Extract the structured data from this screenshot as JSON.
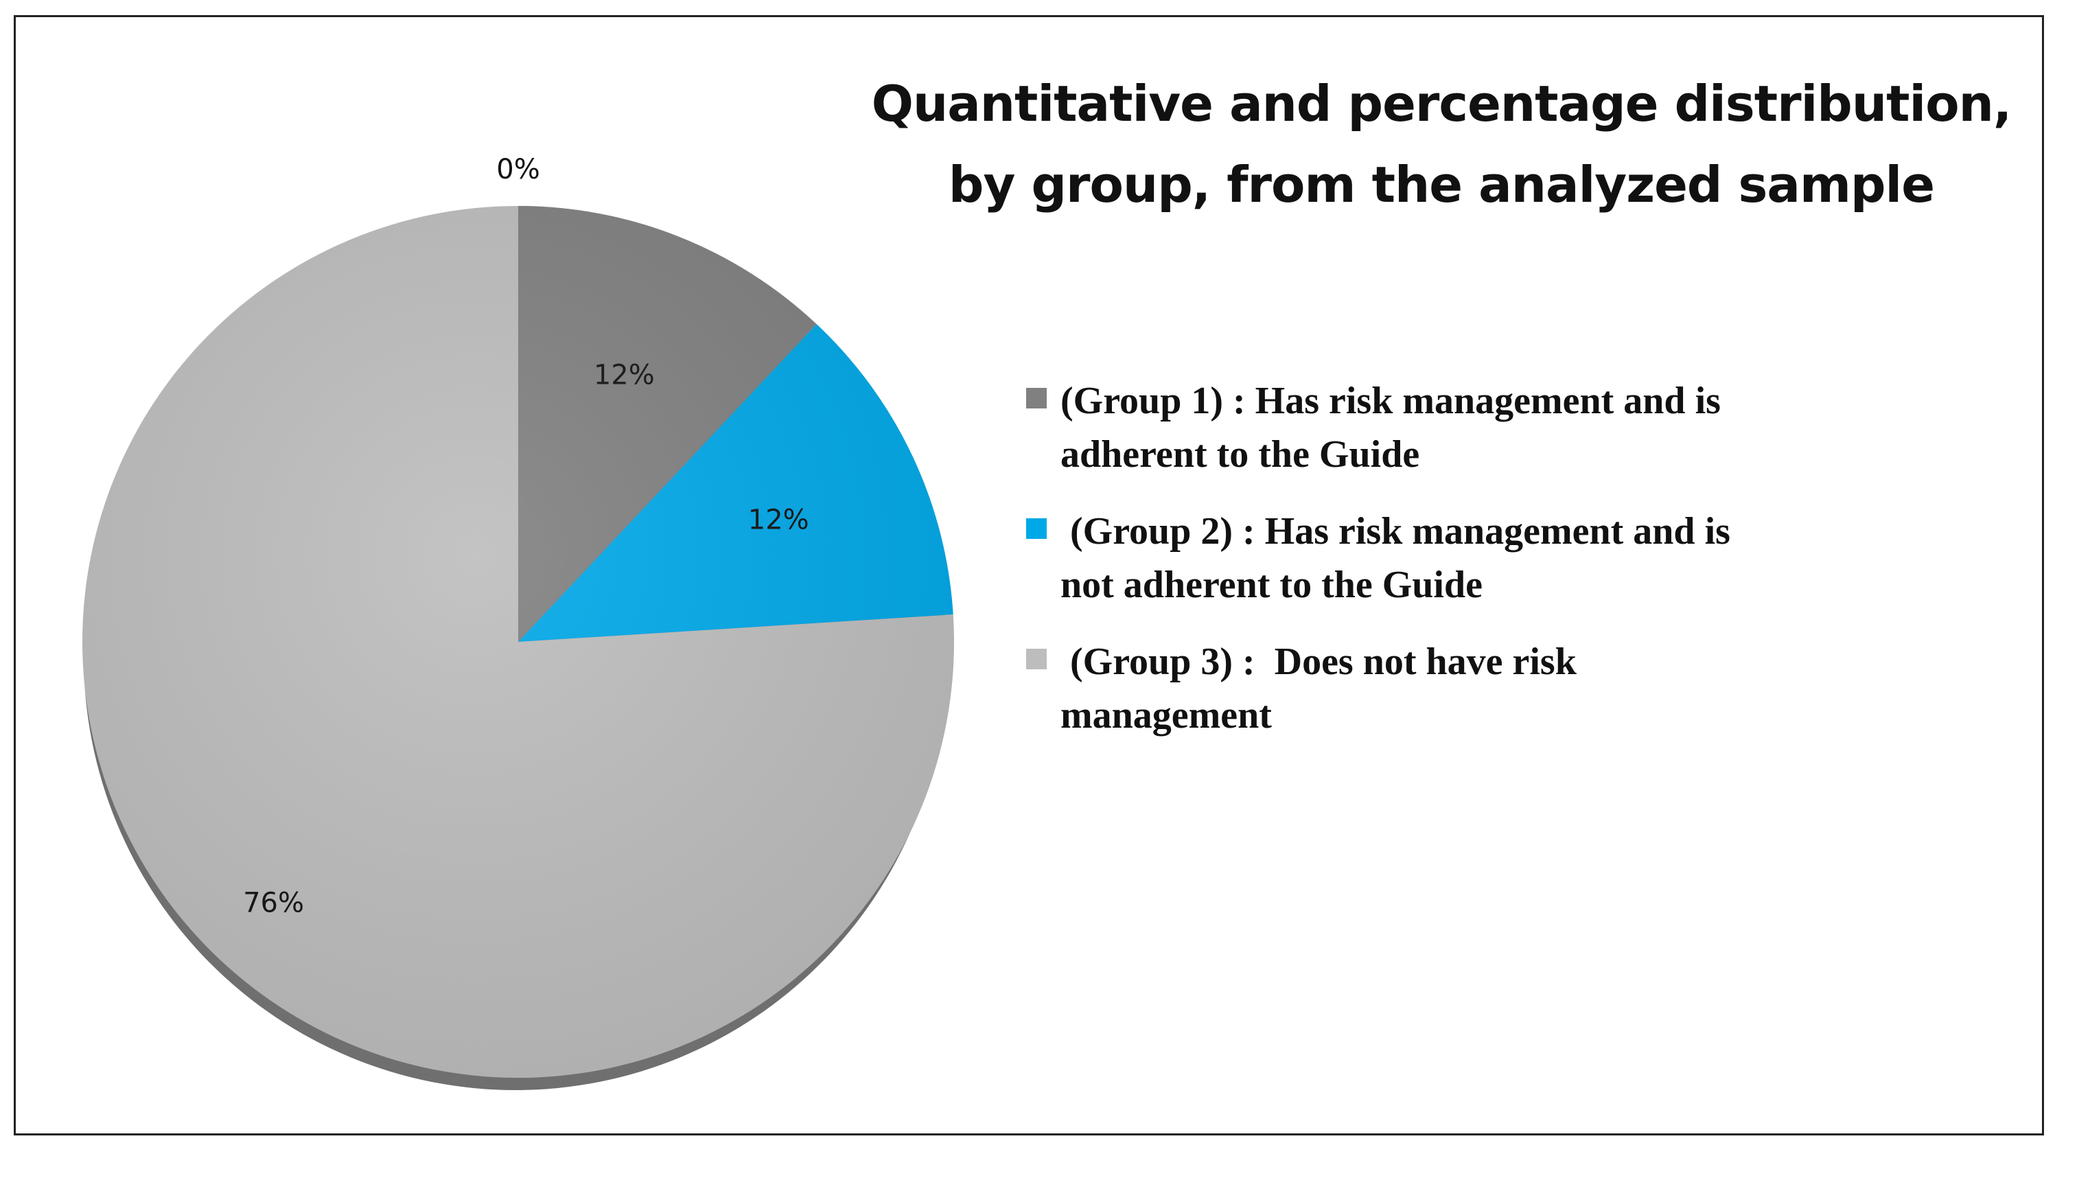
{
  "chart_data": {
    "type": "pie",
    "title": [
      "Quantitative and percentage distribution,",
      "by group, from the analyzed sample"
    ],
    "slices": [
      {
        "label": "(Group 1) : Has risk management and is adherent to the Guide",
        "legend_lines": [
          "(Group 1) : Has risk management and is",
          "adherent to the Guide"
        ],
        "value": 12,
        "value_label": "12%",
        "color": "#808080"
      },
      {
        "label": "(Group 2) : Has risk management and is not adherent to the Guide",
        "legend_lines": [
          " (Group 2) : Has risk management and is",
          "not adherent to the Guide"
        ],
        "value": 12,
        "value_label": "12%",
        "color": "#00a8e8"
      },
      {
        "label": "(Group 3) : Does not have risk management",
        "legend_lines": [
          " (Group 3) :  Does not have risk",
          "management"
        ],
        "value": 76,
        "value_label": "76%",
        "color": "#bdbdbd"
      }
    ],
    "extra_label": "0%",
    "legend_position": "right"
  }
}
